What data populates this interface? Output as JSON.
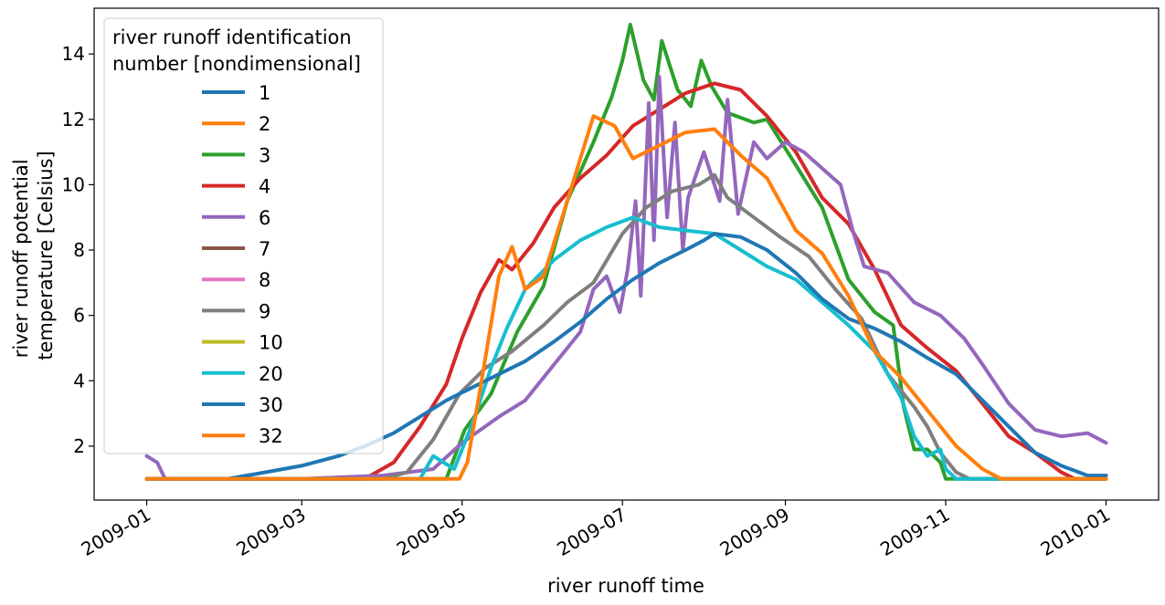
{
  "chart_data": {
    "type": "line",
    "xlabel": "river runoff time",
    "ylabel": [
      "river runoff potential",
      "temperature [Celsius]"
    ],
    "x_range": [
      "2008-12-12",
      "2010-01-21"
    ],
    "ylim": [
      0.35,
      15.4
    ],
    "x_ticks": [
      {
        "date": "2009-01-01",
        "label": "2009-01"
      },
      {
        "date": "2009-03-01",
        "label": "2009-03"
      },
      {
        "date": "2009-05-01",
        "label": "2009-05"
      },
      {
        "date": "2009-07-01",
        "label": "2009-07"
      },
      {
        "date": "2009-09-01",
        "label": "2009-09"
      },
      {
        "date": "2009-11-01",
        "label": "2009-11"
      },
      {
        "date": "2010-01-01",
        "label": "2010-01"
      }
    ],
    "y_ticks": [
      2,
      4,
      6,
      8,
      10,
      12,
      14
    ],
    "grid": false,
    "legend": {
      "title": [
        "river runoff identification",
        "number [nondimensional]"
      ],
      "placement": "upper-left"
    },
    "series": [
      {
        "name": "1",
        "color": "#1f77b4",
        "visible": false,
        "points": []
      },
      {
        "name": "2",
        "color": "#ff7f0e",
        "visible": false,
        "points": []
      },
      {
        "name": "3",
        "color": "#2ca02c",
        "visible": true,
        "points": [
          [
            "2009-01-01",
            1.0
          ],
          [
            "2009-04-25",
            1.0
          ],
          [
            "2009-05-02",
            2.5
          ],
          [
            "2009-05-12",
            3.6
          ],
          [
            "2009-05-22",
            5.5
          ],
          [
            "2009-06-01",
            6.9
          ],
          [
            "2009-06-10",
            9.5
          ],
          [
            "2009-06-20",
            11.3
          ],
          [
            "2009-06-27",
            12.7
          ],
          [
            "2009-07-01",
            13.8
          ],
          [
            "2009-07-04",
            14.9
          ],
          [
            "2009-07-09",
            13.2
          ],
          [
            "2009-07-13",
            12.6
          ],
          [
            "2009-07-16",
            14.4
          ],
          [
            "2009-07-22",
            12.9
          ],
          [
            "2009-07-27",
            12.4
          ],
          [
            "2009-07-31",
            13.8
          ],
          [
            "2009-08-04",
            13.0
          ],
          [
            "2009-08-10",
            12.2
          ],
          [
            "2009-08-20",
            11.9
          ],
          [
            "2009-08-25",
            12.0
          ],
          [
            "2009-09-05",
            10.6
          ],
          [
            "2009-09-15",
            9.3
          ],
          [
            "2009-09-25",
            7.1
          ],
          [
            "2009-10-05",
            6.1
          ],
          [
            "2009-10-12",
            5.7
          ],
          [
            "2009-10-16",
            3.2
          ],
          [
            "2009-10-20",
            1.9
          ],
          [
            "2009-10-25",
            1.9
          ],
          [
            "2009-10-30",
            1.5
          ],
          [
            "2009-11-01",
            1.0
          ],
          [
            "2010-01-01",
            1.0
          ]
        ]
      },
      {
        "name": "4",
        "color": "#d62728",
        "visible": true,
        "points": [
          [
            "2009-01-01",
            1.0
          ],
          [
            "2009-03-25",
            1.0
          ],
          [
            "2009-04-05",
            1.5
          ],
          [
            "2009-04-15",
            2.6
          ],
          [
            "2009-04-25",
            3.9
          ],
          [
            "2009-05-01",
            5.3
          ],
          [
            "2009-05-08",
            6.7
          ],
          [
            "2009-05-15",
            7.7
          ],
          [
            "2009-05-20",
            7.4
          ],
          [
            "2009-05-28",
            8.2
          ],
          [
            "2009-06-05",
            9.3
          ],
          [
            "2009-06-15",
            10.2
          ],
          [
            "2009-06-25",
            10.9
          ],
          [
            "2009-07-05",
            11.8
          ],
          [
            "2009-07-15",
            12.3
          ],
          [
            "2009-07-25",
            12.8
          ],
          [
            "2009-08-05",
            13.1
          ],
          [
            "2009-08-15",
            12.9
          ],
          [
            "2009-08-25",
            12.1
          ],
          [
            "2009-09-05",
            11.0
          ],
          [
            "2009-09-15",
            9.6
          ],
          [
            "2009-09-25",
            8.8
          ],
          [
            "2009-10-05",
            7.4
          ],
          [
            "2009-10-15",
            5.7
          ],
          [
            "2009-10-25",
            5.0
          ],
          [
            "2009-11-05",
            4.3
          ],
          [
            "2009-11-15",
            3.3
          ],
          [
            "2009-11-25",
            2.3
          ],
          [
            "2009-12-05",
            1.8
          ],
          [
            "2009-12-15",
            1.2
          ],
          [
            "2009-12-20",
            1.0
          ],
          [
            "2010-01-01",
            1.0
          ]
        ]
      },
      {
        "name": "6",
        "color": "#9467bd",
        "visible": true,
        "points": [
          [
            "2009-01-01",
            1.7
          ],
          [
            "2009-01-05",
            1.5
          ],
          [
            "2009-01-08",
            1.0
          ],
          [
            "2009-03-01",
            1.0
          ],
          [
            "2009-04-01",
            1.1
          ],
          [
            "2009-04-20",
            1.3
          ],
          [
            "2009-05-01",
            2.1
          ],
          [
            "2009-05-15",
            2.9
          ],
          [
            "2009-05-25",
            3.4
          ],
          [
            "2009-06-05",
            4.5
          ],
          [
            "2009-06-15",
            5.5
          ],
          [
            "2009-06-20",
            6.8
          ],
          [
            "2009-06-25",
            7.2
          ],
          [
            "2009-06-30",
            6.1
          ],
          [
            "2009-07-03",
            7.4
          ],
          [
            "2009-07-06",
            9.5
          ],
          [
            "2009-07-08",
            6.6
          ],
          [
            "2009-07-11",
            12.5
          ],
          [
            "2009-07-13",
            8.3
          ],
          [
            "2009-07-15",
            13.3
          ],
          [
            "2009-07-18",
            9.0
          ],
          [
            "2009-07-21",
            11.9
          ],
          [
            "2009-07-24",
            8.0
          ],
          [
            "2009-07-26",
            9.6
          ],
          [
            "2009-08-01",
            11.0
          ],
          [
            "2009-08-07",
            9.5
          ],
          [
            "2009-08-10",
            12.6
          ],
          [
            "2009-08-14",
            9.1
          ],
          [
            "2009-08-20",
            11.3
          ],
          [
            "2009-08-25",
            10.8
          ],
          [
            "2009-09-01",
            11.3
          ],
          [
            "2009-09-08",
            11.0
          ],
          [
            "2009-09-15",
            10.5
          ],
          [
            "2009-09-22",
            10.0
          ],
          [
            "2009-09-27",
            8.5
          ],
          [
            "2009-10-01",
            7.5
          ],
          [
            "2009-10-10",
            7.3
          ],
          [
            "2009-10-20",
            6.4
          ],
          [
            "2009-10-30",
            6.0
          ],
          [
            "2009-11-08",
            5.3
          ],
          [
            "2009-11-15",
            4.5
          ],
          [
            "2009-11-25",
            3.3
          ],
          [
            "2009-12-05",
            2.5
          ],
          [
            "2009-12-15",
            2.3
          ],
          [
            "2009-12-25",
            2.4
          ],
          [
            "2010-01-01",
            2.1
          ]
        ]
      },
      {
        "name": "7",
        "color": "#8c564b",
        "visible": false,
        "points": []
      },
      {
        "name": "8",
        "color": "#e377c2",
        "visible": false,
        "points": []
      },
      {
        "name": "9",
        "color": "#7f7f7f",
        "visible": true,
        "points": [
          [
            "2009-01-01",
            1.0
          ],
          [
            "2009-04-01",
            1.0
          ],
          [
            "2009-04-10",
            1.2
          ],
          [
            "2009-04-20",
            2.2
          ],
          [
            "2009-04-30",
            3.6
          ],
          [
            "2009-05-10",
            4.4
          ],
          [
            "2009-05-20",
            4.9
          ],
          [
            "2009-06-01",
            5.7
          ],
          [
            "2009-06-10",
            6.4
          ],
          [
            "2009-06-20",
            7.0
          ],
          [
            "2009-07-01",
            8.5
          ],
          [
            "2009-07-10",
            9.3
          ],
          [
            "2009-07-20",
            9.8
          ],
          [
            "2009-07-30",
            10.0
          ],
          [
            "2009-08-05",
            10.3
          ],
          [
            "2009-08-10",
            9.6
          ],
          [
            "2009-08-20",
            9.0
          ],
          [
            "2009-08-30",
            8.4
          ],
          [
            "2009-09-10",
            7.8
          ],
          [
            "2009-09-20",
            6.8
          ],
          [
            "2009-09-30",
            5.9
          ],
          [
            "2009-10-10",
            4.2
          ],
          [
            "2009-10-20",
            3.2
          ],
          [
            "2009-10-25",
            2.6
          ],
          [
            "2009-10-30",
            1.8
          ],
          [
            "2009-11-05",
            1.2
          ],
          [
            "2009-11-10",
            1.0
          ],
          [
            "2010-01-01",
            1.0
          ]
        ]
      },
      {
        "name": "10",
        "color": "#bcbd22",
        "visible": false,
        "points": []
      },
      {
        "name": "20",
        "color": "#17becf",
        "visible": true,
        "points": [
          [
            "2009-01-01",
            1.0
          ],
          [
            "2009-04-15",
            1.0
          ],
          [
            "2009-04-20",
            1.7
          ],
          [
            "2009-04-28",
            1.3
          ],
          [
            "2009-05-05",
            2.7
          ],
          [
            "2009-05-12",
            4.4
          ],
          [
            "2009-05-18",
            5.6
          ],
          [
            "2009-05-25",
            6.8
          ],
          [
            "2009-06-05",
            7.7
          ],
          [
            "2009-06-15",
            8.3
          ],
          [
            "2009-06-25",
            8.7
          ],
          [
            "2009-07-05",
            9.0
          ],
          [
            "2009-07-15",
            8.7
          ],
          [
            "2009-07-25",
            8.6
          ],
          [
            "2009-08-05",
            8.5
          ],
          [
            "2009-08-15",
            8.0
          ],
          [
            "2009-08-25",
            7.5
          ],
          [
            "2009-09-05",
            7.1
          ],
          [
            "2009-09-15",
            6.4
          ],
          [
            "2009-09-25",
            5.7
          ],
          [
            "2009-10-05",
            4.9
          ],
          [
            "2009-10-15",
            3.5
          ],
          [
            "2009-10-20",
            2.3
          ],
          [
            "2009-10-25",
            1.7
          ],
          [
            "2009-10-30",
            1.9
          ],
          [
            "2009-11-01",
            1.3
          ],
          [
            "2009-11-05",
            1.0
          ],
          [
            "2010-01-01",
            1.0
          ]
        ]
      },
      {
        "name": "30",
        "color": "#1f77b4",
        "visible": true,
        "points": [
          [
            "2009-01-01",
            1.0
          ],
          [
            "2009-02-01",
            1.0
          ],
          [
            "2009-02-15",
            1.2
          ],
          [
            "2009-03-01",
            1.4
          ],
          [
            "2009-03-15",
            1.7
          ],
          [
            "2009-03-25",
            2.0
          ],
          [
            "2009-04-05",
            2.4
          ],
          [
            "2009-04-15",
            2.9
          ],
          [
            "2009-04-25",
            3.4
          ],
          [
            "2009-05-05",
            3.8
          ],
          [
            "2009-05-15",
            4.2
          ],
          [
            "2009-05-25",
            4.6
          ],
          [
            "2009-06-05",
            5.2
          ],
          [
            "2009-06-15",
            5.8
          ],
          [
            "2009-06-25",
            6.5
          ],
          [
            "2009-07-05",
            7.1
          ],
          [
            "2009-07-15",
            7.6
          ],
          [
            "2009-07-25",
            8.0
          ],
          [
            "2009-08-01",
            8.3
          ],
          [
            "2009-08-05",
            8.5
          ],
          [
            "2009-08-15",
            8.4
          ],
          [
            "2009-08-25",
            8.0
          ],
          [
            "2009-09-05",
            7.3
          ],
          [
            "2009-09-15",
            6.5
          ],
          [
            "2009-09-25",
            5.9
          ],
          [
            "2009-10-05",
            5.6
          ],
          [
            "2009-10-15",
            5.2
          ],
          [
            "2009-10-25",
            4.7
          ],
          [
            "2009-11-05",
            4.2
          ],
          [
            "2009-11-15",
            3.4
          ],
          [
            "2009-11-25",
            2.6
          ],
          [
            "2009-12-05",
            1.8
          ],
          [
            "2009-12-15",
            1.4
          ],
          [
            "2009-12-25",
            1.1
          ],
          [
            "2010-01-01",
            1.1
          ]
        ]
      },
      {
        "name": "32",
        "color": "#ff7f0e",
        "visible": true,
        "points": [
          [
            "2009-01-01",
            1.0
          ],
          [
            "2009-04-30",
            1.0
          ],
          [
            "2009-05-03",
            1.5
          ],
          [
            "2009-05-08",
            3.8
          ],
          [
            "2009-05-15",
            7.2
          ],
          [
            "2009-05-20",
            8.1
          ],
          [
            "2009-05-25",
            6.8
          ],
          [
            "2009-06-01",
            7.2
          ],
          [
            "2009-06-10",
            9.5
          ],
          [
            "2009-06-20",
            12.1
          ],
          [
            "2009-06-28",
            11.8
          ],
          [
            "2009-07-05",
            10.8
          ],
          [
            "2009-07-15",
            11.2
          ],
          [
            "2009-07-25",
            11.6
          ],
          [
            "2009-08-05",
            11.7
          ],
          [
            "2009-08-15",
            10.9
          ],
          [
            "2009-08-25",
            10.2
          ],
          [
            "2009-09-05",
            8.6
          ],
          [
            "2009-09-15",
            7.9
          ],
          [
            "2009-09-25",
            6.6
          ],
          [
            "2009-10-05",
            4.9
          ],
          [
            "2009-10-15",
            4.1
          ],
          [
            "2009-10-25",
            3.1
          ],
          [
            "2009-11-05",
            2.0
          ],
          [
            "2009-11-15",
            1.3
          ],
          [
            "2009-11-22",
            1.0
          ],
          [
            "2010-01-01",
            1.0
          ]
        ]
      }
    ]
  }
}
